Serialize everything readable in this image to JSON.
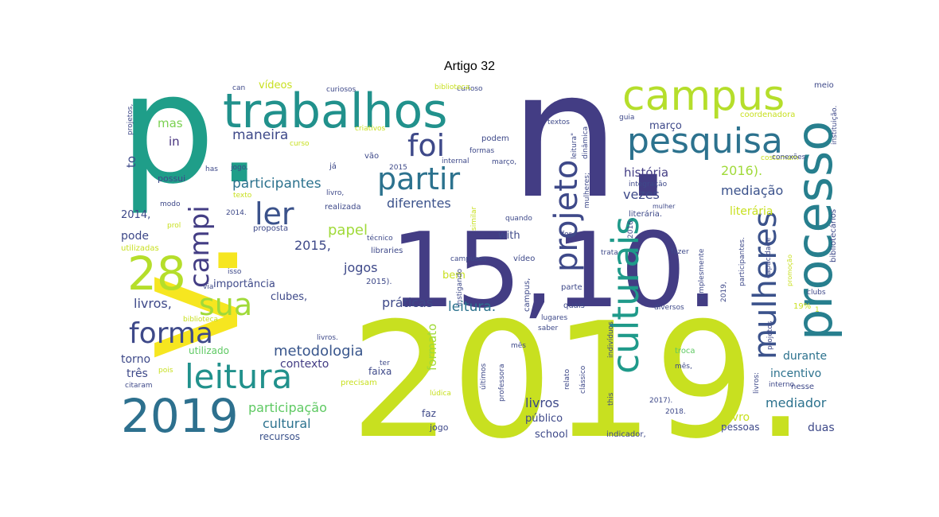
{
  "figure": {
    "title": "Artigo 32"
  },
  "cloud": {
    "palette": {
      "purple": "#440154",
      "indigo": "#443a83",
      "blue": "#31688e",
      "teal": "#21918c",
      "green": "#1fa187",
      "lime": "#5ec962",
      "yellowgreen": "#c2df23",
      "yellow": "#fde725"
    },
    "words": [
      {
        "text": "p.",
        "color": "#1f9e89",
        "w": 1
      },
      {
        "text": "n.",
        "color": "#433d84",
        "w": 1
      },
      {
        "text": "v.",
        "color": "#f6e620",
        "w": 1
      },
      {
        "text": "2019.",
        "color": "#c8e020",
        "w": 1
      },
      {
        "text": "15,10.",
        "color": "#433d84",
        "w": 1
      },
      {
        "text": "trabalhos",
        "color": "#21918c",
        "w": 0.8
      },
      {
        "text": "campus",
        "color": "#b5de2b",
        "w": 0.7
      },
      {
        "text": "processo",
        "color": "#277f8e",
        "w": 0.75
      },
      {
        "text": "pesquisa",
        "color": "#2c728e",
        "w": 0.6
      },
      {
        "text": "projeto",
        "color": "#3e4989",
        "w": 0.55
      },
      {
        "text": "culturais",
        "color": "#1f9a8a",
        "w": 0.6
      },
      {
        "text": "mulheres",
        "color": "#3b528b",
        "w": 0.55
      },
      {
        "text": "2019",
        "color": "#2d708e",
        "w": 0.7
      },
      {
        "text": "leitura",
        "color": "#21918c",
        "w": 0.6
      },
      {
        "text": "28",
        "color": "#b5de2b",
        "w": 0.6
      },
      {
        "text": "sua",
        "color": "#a0da39",
        "w": 0.55
      },
      {
        "text": "forma",
        "color": "#3e4989",
        "w": 0.5
      },
      {
        "text": "campi",
        "color": "#433d84",
        "w": 0.5
      },
      {
        "text": "ler",
        "color": "#3b528b",
        "w": 0.5
      },
      {
        "text": "partir",
        "color": "#2c728e",
        "w": 0.5
      },
      {
        "text": "foi",
        "color": "#3e4989",
        "w": 0.5
      },
      {
        "text": "maneira",
        "color": "#3e4989",
        "w": 0.3
      },
      {
        "text": "mas",
        "color": "#7ad151",
        "w": 0.2
      },
      {
        "text": "in",
        "color": "#46327e",
        "w": 0.2
      },
      {
        "text": "to",
        "color": "#3e4989",
        "w": 0.2
      },
      {
        "text": "participantes",
        "color": "#2c728e",
        "w": 0.3
      },
      {
        "text": "diferentes",
        "color": "#3b528b",
        "w": 0.3
      },
      {
        "text": "metodologia",
        "color": "#39568c",
        "w": 0.35
      },
      {
        "text": "papel",
        "color": "#a0da39",
        "w": 0.3
      },
      {
        "text": "2015,",
        "color": "#3e4989",
        "w": 0.3
      },
      {
        "text": "jogos",
        "color": "#3e4989",
        "w": 0.3
      },
      {
        "text": "práticas",
        "color": "#3e4989",
        "w": 0.3
      },
      {
        "text": "leitura.",
        "color": "#2c728e",
        "w": 0.3
      },
      {
        "text": "história",
        "color": "#433d84",
        "w": 0.3
      },
      {
        "text": "mediação",
        "color": "#3b528b",
        "w": 0.3
      },
      {
        "text": "vezes",
        "color": "#3e4989",
        "w": 0.3
      },
      {
        "text": "2016).",
        "color": "#a0da39",
        "w": 0.3
      },
      {
        "text": "março",
        "color": "#3e4989",
        "w": 0.25
      },
      {
        "text": "literária",
        "color": "#c8e020",
        "w": 0.25
      },
      {
        "text": "contexto",
        "color": "#433d84",
        "w": 0.3
      },
      {
        "text": "participação",
        "color": "#5ec962",
        "w": 0.3
      },
      {
        "text": "cultural",
        "color": "#2c728e",
        "w": 0.3
      },
      {
        "text": "recursos",
        "color": "#3b528b",
        "w": 0.25
      },
      {
        "text": "formato",
        "color": "#a0da39",
        "w": 0.25
      },
      {
        "text": "mediador",
        "color": "#2c728e",
        "w": 0.3
      },
      {
        "text": "incentivo",
        "color": "#2c728e",
        "w": 0.3
      },
      {
        "text": "durante",
        "color": "#2c728e",
        "w": 0.3
      },
      {
        "text": "livro",
        "color": "#c8e020",
        "w": 0.3
      },
      {
        "text": "duas",
        "color": "#3e4989",
        "w": 0.3
      },
      {
        "text": "livros",
        "color": "#3e4989",
        "w": 0.3
      },
      {
        "text": "livros,",
        "color": "#3e4989",
        "w": 0.3
      },
      {
        "text": "pode",
        "color": "#3e4989",
        "w": 0.25
      },
      {
        "text": "torno",
        "color": "#3e4989",
        "w": 0.25
      },
      {
        "text": "três",
        "color": "#3e4989",
        "w": 0.25
      },
      {
        "text": "2014,",
        "color": "#3e4989",
        "w": 0.25
      },
      {
        "text": "importância",
        "color": "#3e4989",
        "w": 0.22
      },
      {
        "text": "clubes,",
        "color": "#3e4989",
        "w": 0.22
      },
      {
        "text": "with",
        "color": "#3e4989",
        "w": 0.22
      },
      {
        "text": "bem",
        "color": "#c8e020",
        "w": 0.22
      },
      {
        "text": "público",
        "color": "#3e4989",
        "w": 0.22
      },
      {
        "text": "school",
        "color": "#3e4989",
        "w": 0.22
      },
      {
        "text": "pessoas",
        "color": "#3e4989",
        "w": 0.22
      },
      {
        "text": "faixa",
        "color": "#3e4989",
        "w": 0.22
      },
      {
        "text": "faz",
        "color": "#3e4989",
        "w": 0.22
      },
      {
        "text": "jogo",
        "color": "#3e4989",
        "w": 0.2
      },
      {
        "text": "utilizado",
        "color": "#5ec962",
        "w": 0.2
      },
      {
        "text": "vídeos",
        "color": "#c8e020",
        "w": 0.2
      },
      {
        "text": "possui",
        "color": "#3e4989",
        "w": 0.15
      },
      {
        "text": "realizada",
        "color": "#3e4989",
        "w": 0.15
      },
      {
        "text": "proposta",
        "color": "#3e4989",
        "w": 0.15
      },
      {
        "text": "libraries",
        "color": "#3e4989",
        "w": 0.15
      },
      {
        "text": "2015).",
        "color": "#3e4989",
        "w": 0.15
      },
      {
        "text": "vão",
        "color": "#3e4989",
        "w": 0.15
      },
      {
        "text": "já",
        "color": "#3e4989",
        "w": 0.15
      },
      {
        "text": "parte",
        "color": "#3e4989",
        "w": 0.15
      },
      {
        "text": "quais",
        "color": "#3e4989",
        "w": 0.15
      },
      {
        "text": "vídeo",
        "color": "#3e4989",
        "w": 0.15
      },
      {
        "text": "trata",
        "color": "#3e4989",
        "w": 0.15
      },
      {
        "text": "meio",
        "color": "#3e4989",
        "w": 0.15
      },
      {
        "text": "fazer",
        "color": "#3e4989",
        "w": 0.15
      },
      {
        "text": "clubs",
        "color": "#3e4989",
        "w": 0.15
      },
      {
        "text": "diversos",
        "color": "#3e4989",
        "w": 0.15
      },
      {
        "text": "mês,",
        "color": "#3e4989",
        "w": 0.15
      },
      {
        "text": "mês",
        "color": "#3e4989",
        "w": 0.15
      },
      {
        "text": "troca",
        "color": "#5ec962",
        "w": 0.15
      },
      {
        "text": "2018.",
        "color": "#3e4989",
        "w": 0.15
      },
      {
        "text": "2017).",
        "color": "#3e4989",
        "w": 0.15
      },
      {
        "text": "indicador,",
        "color": "#3e4989",
        "w": 0.15
      },
      {
        "text": "nesse",
        "color": "#3e4989",
        "w": 0.15
      },
      {
        "text": "interno",
        "color": "#3e4989",
        "w": 0.15
      },
      {
        "text": "19%",
        "color": "#c8e020",
        "w": 0.15
      },
      {
        "text": "coordenadora",
        "color": "#c8e020",
        "w": 0.15
      },
      {
        "text": "guia",
        "color": "#3e4989",
        "w": 0.15
      },
      {
        "text": "textos",
        "color": "#3e4989",
        "w": 0.15
      },
      {
        "text": "formas",
        "color": "#3e4989",
        "w": 0.15
      },
      {
        "text": "podem",
        "color": "#3e4989",
        "w": 0.15
      },
      {
        "text": "internal",
        "color": "#3e4989",
        "w": 0.15
      },
      {
        "text": "março,",
        "color": "#3e4989",
        "w": 0.15
      },
      {
        "text": "curioso",
        "color": "#3e4989",
        "w": 0.15
      },
      {
        "text": "curiosos",
        "color": "#3e4989",
        "w": 0.15
      },
      {
        "text": "biblioteca,",
        "color": "#c8e020",
        "w": 0.15
      },
      {
        "text": "criativos",
        "color": "#c8e020",
        "w": 0.15
      },
      {
        "text": "curso",
        "color": "#c8e020",
        "w": 0.15
      },
      {
        "text": "can",
        "color": "#3e4989",
        "w": 0.15
      },
      {
        "text": "has",
        "color": "#3e4989",
        "w": 0.15
      },
      {
        "text": "jogo.",
        "color": "#3e4989",
        "w": 0.15
      },
      {
        "text": "texto",
        "color": "#c8e020",
        "w": 0.15
      },
      {
        "text": "modo",
        "color": "#3e4989",
        "w": 0.15
      },
      {
        "text": "2014.",
        "color": "#3e4989",
        "w": 0.15
      },
      {
        "text": "prol",
        "color": "#c8e020",
        "w": 0.15
      },
      {
        "text": "utilizadas",
        "color": "#c8e020",
        "w": 0.15
      },
      {
        "text": "isso",
        "color": "#3e4989",
        "w": 0.15
      },
      {
        "text": "via",
        "color": "#3e4989",
        "w": 0.15
      },
      {
        "text": "biblioteca",
        "color": "#c8e020",
        "w": 0.15
      },
      {
        "text": "pois",
        "color": "#c8e020",
        "w": 0.15
      },
      {
        "text": "citaram",
        "color": "#3e4989",
        "w": 0.15
      },
      {
        "text": "precisam",
        "color": "#c8e020",
        "w": 0.15
      },
      {
        "text": "ter",
        "color": "#3e4989",
        "w": 0.15
      },
      {
        "text": "lúdica",
        "color": "#c8e020",
        "w": 0.15
      },
      {
        "text": "livros.",
        "color": "#3e4989",
        "w": 0.15
      },
      {
        "text": "técnico",
        "color": "#3e4989",
        "w": 0.15
      },
      {
        "text": "2015",
        "color": "#3e4989",
        "w": 0.15
      },
      {
        "text": "livro,",
        "color": "#3e4989",
        "w": 0.15
      },
      {
        "text": "campuses",
        "color": "#3e4989",
        "w": 0.15
      },
      {
        "text": "lugares",
        "color": "#3e4989",
        "w": 0.15
      },
      {
        "text": "saber",
        "color": "#3e4989",
        "w": 0.15
      },
      {
        "text": "costumam",
        "color": "#c8e020",
        "w": 0.15
      },
      {
        "text": "conexões",
        "color": "#3e4989",
        "w": 0.15
      },
      {
        "text": "integração",
        "color": "#3e4989",
        "w": 0.15
      },
      {
        "text": "mulher",
        "color": "#3e4989",
        "w": 0.15
      },
      {
        "text": "for",
        "color": "#3e4989",
        "w": 0.15
      },
      {
        "text": "quando",
        "color": "#3e4989",
        "w": 0.15
      },
      {
        "text": "capacidade",
        "color": "#3e4989",
        "w": 0.15
      },
      {
        "text": "projetos,",
        "color": "#3e4989",
        "w": 0.15
      },
      {
        "text": "instituição.",
        "color": "#3e4989",
        "w": 0.15
      },
      {
        "text": "bibliotecários",
        "color": "#3e4989",
        "w": 0.15
      },
      {
        "text": "simplesmente",
        "color": "#3e4989",
        "w": 0.15
      },
      {
        "text": "participantes.",
        "color": "#3e4989",
        "w": 0.15
      },
      {
        "text": "promoção",
        "color": "#c8e020",
        "w": 0.15
      },
      {
        "text": "indivíduos",
        "color": "#3e4989",
        "w": 0.15
      },
      {
        "text": "professora",
        "color": "#3e4989",
        "w": 0.15
      },
      {
        "text": "clássico",
        "color": "#3e4989",
        "w": 0.15
      },
      {
        "text": "relato",
        "color": "#3e4989",
        "w": 0.15
      },
      {
        "text": "últimos",
        "color": "#3e4989",
        "w": 0.15
      },
      {
        "text": "this",
        "color": "#3e4989",
        "w": 0.15
      },
      {
        "text": "dinâmica",
        "color": "#3e4989",
        "w": 0.15
      },
      {
        "text": "leitura\"",
        "color": "#3e4989",
        "w": 0.15
      },
      {
        "text": "instigando",
        "color": "#3e4989",
        "w": 0.15
      },
      {
        "text": "similar",
        "color": "#c8e020",
        "w": 0.15
      },
      {
        "text": "literária.",
        "color": "#3e4989",
        "w": 0.15
      },
      {
        "text": "campus,",
        "color": "#3e4989",
        "w": 0.15
      },
      {
        "text": "2019,",
        "color": "#3e4989",
        "w": 0.15
      },
      {
        "text": "2016.",
        "color": "#3e4989",
        "w": 0.15
      },
      {
        "text": "mulheres;",
        "color": "#3e4989",
        "w": 0.15
      },
      {
        "text": "livros:",
        "color": "#3e4989",
        "w": 0.15
      },
      {
        "text": "projetos",
        "color": "#3e4989",
        "w": 0.15
      },
      {
        "text": "1",
        "color": "#c8e020",
        "w": 0.15
      }
    ]
  }
}
